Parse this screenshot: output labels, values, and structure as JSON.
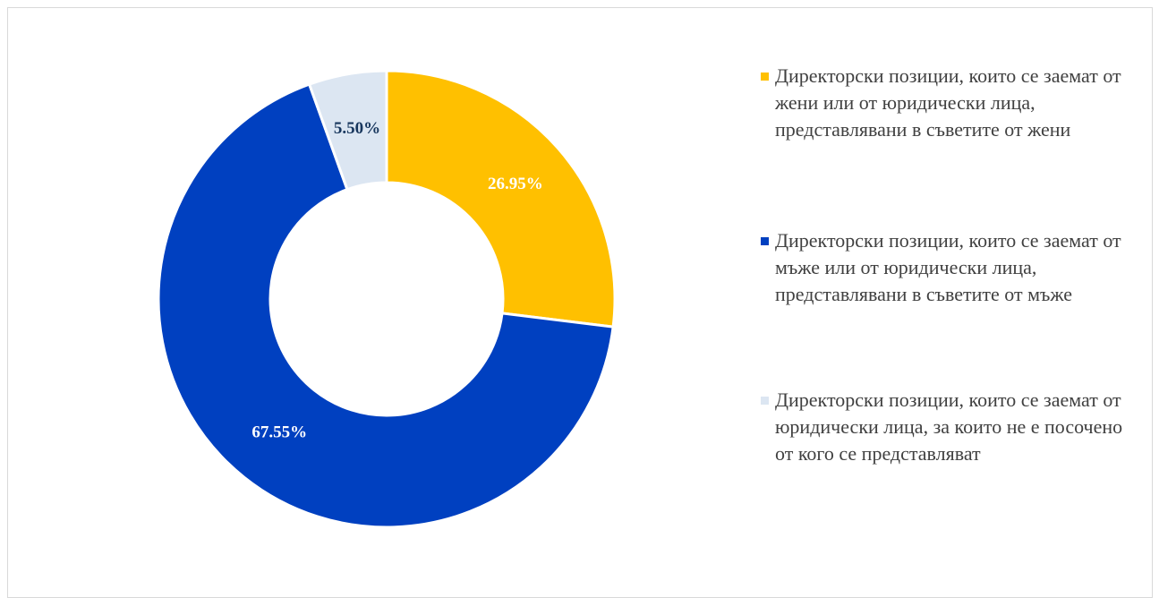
{
  "chart_data": {
    "type": "pie",
    "variant": "donut",
    "categories": [
      "Директорски позиции, които се заемат от жени или от юридически лица, представлявани в съветите от жени",
      "Директорски позиции, които се заемат от мъже или от юридически лица, представлявани в съветите от мъже",
      "Директорски позиции, които се заемат от юридически лица, за които не е посочено от кого се представляват"
    ],
    "values": [
      26.95,
      67.55,
      5.5
    ],
    "data_labels": [
      "26.95%",
      "67.55%",
      "5.50%"
    ],
    "colors": [
      "#ffc000",
      "#0040c0",
      "#dce6f2"
    ],
    "label_colors": [
      "#ffffff",
      "#ffffff",
      "#17365d"
    ],
    "legend_position": "right"
  },
  "legend": {
    "items": [
      {
        "label": "Директорски позиции, които се заемат от жени или от юридически лица, представлявани в съветите от жени",
        "color": "#ffc000"
      },
      {
        "label": "Директорски позиции, които се заемат от мъже или от юридически лица, представлявани в съветите от мъже",
        "color": "#0040c0"
      },
      {
        "label": "Директорски позиции, които се заемат от юридически лица, за които не е посочено от кого се представляват",
        "color": "#dce6f2"
      }
    ]
  }
}
